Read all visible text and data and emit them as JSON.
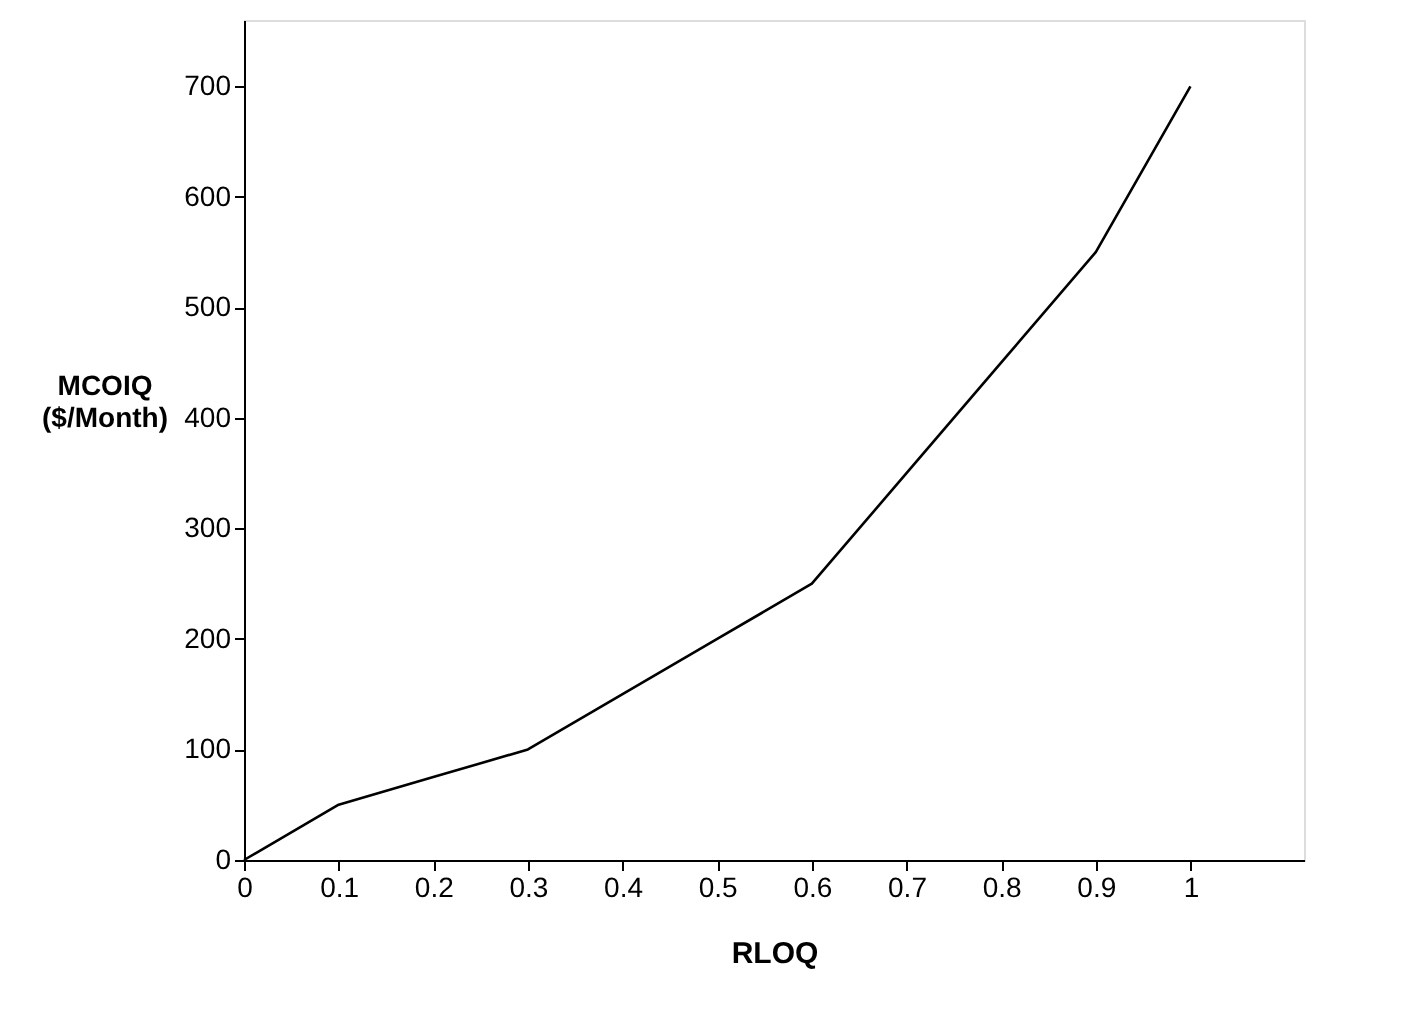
{
  "chart_data": {
    "type": "line",
    "xlabel": "RLOQ",
    "ylabel": "MCOIQ\n($/Month)",
    "x": [
      0,
      0.1,
      0.2,
      0.3,
      0.4,
      0.5,
      0.6,
      0.7,
      0.8,
      0.9,
      1.0
    ],
    "series": [
      {
        "color": "#000000",
        "values": [
          0,
          50,
          75,
          100,
          150,
          200,
          250,
          350,
          450,
          550,
          700
        ]
      }
    ],
    "xlim": [
      0,
      1.12
    ],
    "ylim": [
      0,
      760
    ],
    "xticks": [
      0,
      0.1,
      0.2,
      0.3,
      0.4,
      0.5,
      0.6,
      0.7,
      0.8,
      0.9,
      1
    ],
    "yticks": [
      0,
      100,
      200,
      300,
      400,
      500,
      600,
      700
    ],
    "grid": false,
    "marker": "none",
    "line_style": "solid"
  }
}
